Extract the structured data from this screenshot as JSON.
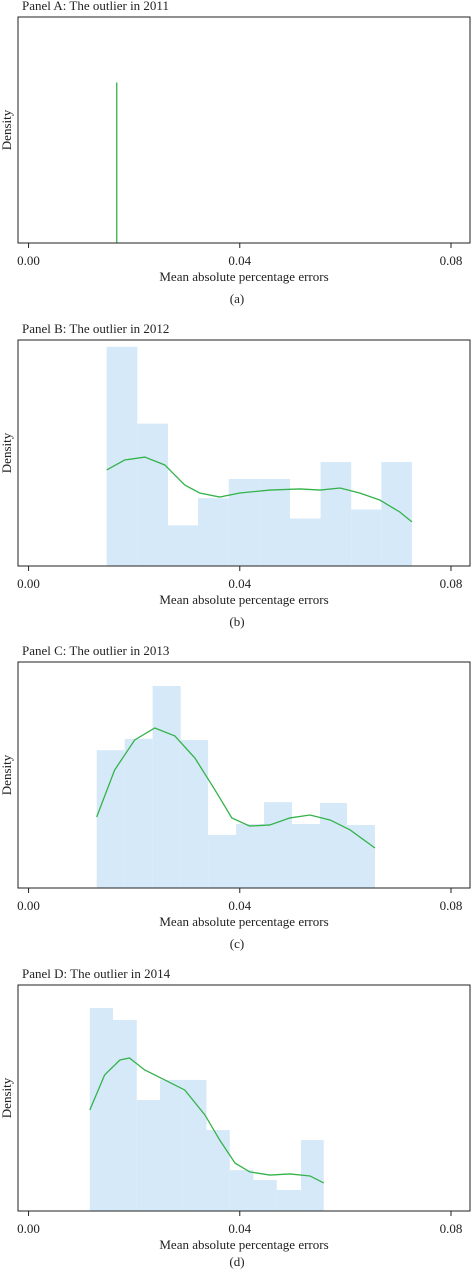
{
  "chart_data": [
    {
      "type": "line",
      "title": "Panel A: The outlier in 2011",
      "xlabel": "Mean absolute percentage errors",
      "ylabel": "Density",
      "caption": "(a)",
      "xlim": [
        -0.002,
        0.0836
      ],
      "ylim": [
        0,
        100
      ],
      "xticks": [
        {
          "value": 0,
          "label": "0.00"
        },
        0.04,
        0.08
      ],
      "kde": {
        "color": "#33b34a",
        "x": [
          0.0167,
          0.0167
        ],
        "values": [
          0,
          71
        ]
      }
    },
    {
      "type": "histogram",
      "title": "Panel B: The outlier in 2012",
      "xlabel": "Mean absolute percentage errors",
      "ylabel": "Density",
      "caption": "(b)",
      "xlim": [
        -0.002,
        0.0836
      ],
      "ylim": [
        0,
        100
      ],
      "xticks": [
        {
          "value": 0,
          "label": "0.00"
        },
        0.04,
        0.08
      ],
      "bar_color": "#d6e9f8",
      "bins": [
        0.0148,
        0.0206,
        0.0264,
        0.0321,
        0.0379,
        0.0437,
        0.0495,
        0.0553,
        0.0611,
        0.0668,
        0.0726
      ],
      "values": [
        97,
        63,
        18,
        30,
        38.5,
        38.5,
        21,
        46,
        25,
        46
      ],
      "kde": {
        "color": "#33b34a",
        "x": [
          0.0148,
          0.0182,
          0.022,
          0.0258,
          0.0296,
          0.0324,
          0.0362,
          0.04,
          0.0457,
          0.0514,
          0.0552,
          0.059,
          0.0627,
          0.0665,
          0.0703,
          0.0726
        ],
        "values": [
          42.5,
          46.9,
          48.2,
          44.7,
          35.8,
          32.3,
          30.5,
          32.3,
          33.6,
          34.1,
          33.6,
          34.5,
          32.3,
          29.2,
          23.9,
          19.5
        ]
      }
    },
    {
      "type": "histogram",
      "title": "Panel C: The outlier in 2013",
      "xlabel": "Mean absolute percentage errors",
      "ylabel": "Density",
      "caption": "(c)",
      "xlim": [
        -0.002,
        0.0836
      ],
      "ylim": [
        0,
        100
      ],
      "xticks": [
        {
          "value": 0,
          "label": "0.00"
        },
        0.04,
        0.08
      ],
      "bar_color": "#d6e9f8",
      "bins": [
        0.0129,
        0.0182,
        0.0235,
        0.0288,
        0.034,
        0.0393,
        0.0446,
        0.0499,
        0.0552,
        0.0603,
        0.0656
      ],
      "values": [
        61,
        66,
        89.4,
        65.5,
        23.5,
        28.3,
        38,
        28.3,
        37.6,
        27.9
      ],
      "kde": {
        "color": "#33b34a",
        "x": [
          0.0129,
          0.0163,
          0.0201,
          0.0239,
          0.0277,
          0.0315,
          0.0353,
          0.0385,
          0.0419,
          0.0457,
          0.0495,
          0.0533,
          0.0571,
          0.0609,
          0.0656
        ],
        "values": [
          31.4,
          52.2,
          65.5,
          70.8,
          67.3,
          57.5,
          43.4,
          31,
          27.4,
          27.9,
          31,
          32.3,
          30.1,
          25.7,
          17.7
        ]
      }
    },
    {
      "type": "histogram",
      "title": "Panel D: The outlier in 2014",
      "xlabel": "Mean absolute percentage errors",
      "ylabel": "Density",
      "caption": "(d)",
      "xlim": [
        -0.002,
        0.0836
      ],
      "ylim": [
        0,
        100
      ],
      "xticks": [
        {
          "value": 0,
          "label": "0.00"
        },
        0.04,
        0.08
      ],
      "bar_color": "#d6e9f8",
      "bins": [
        0.0116,
        0.016,
        0.0205,
        0.0249,
        0.0292,
        0.0337,
        0.0381,
        0.0426,
        0.047,
        0.0516,
        0.0559
      ],
      "values": [
        89.8,
        84.5,
        49.1,
        58,
        58,
        35.8,
        18.1,
        13.7,
        9.3,
        31.4
      ],
      "kde": {
        "color": "#33b34a",
        "x": [
          0.0116,
          0.0144,
          0.0173,
          0.0191,
          0.022,
          0.0258,
          0.0296,
          0.0334,
          0.0362,
          0.0391,
          0.0419,
          0.0457,
          0.0495,
          0.0533,
          0.0559
        ],
        "values": [
          44.7,
          60.2,
          66.8,
          67.7,
          62.4,
          58,
          53.5,
          42.5,
          31.4,
          21.2,
          17.3,
          15.9,
          16.4,
          15.5,
          12.4
        ]
      }
    }
  ]
}
